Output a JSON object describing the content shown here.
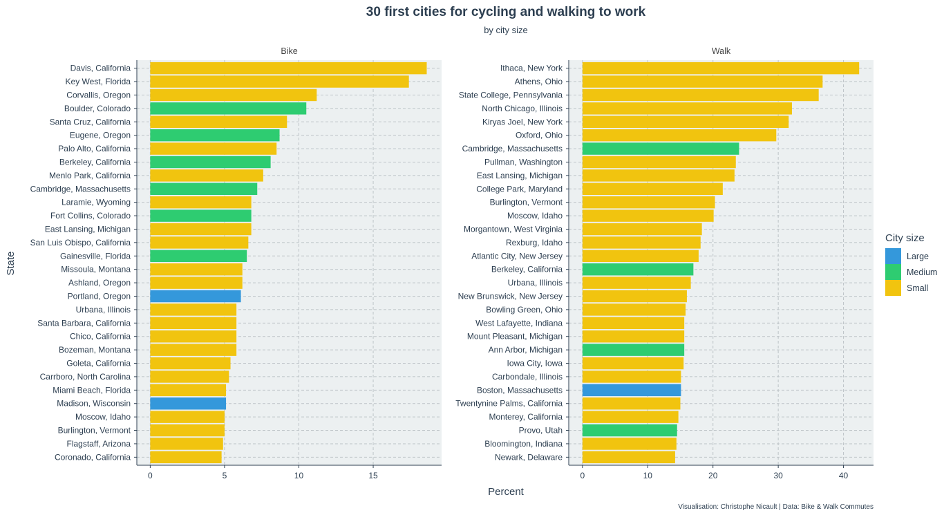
{
  "chart_data": {
    "type": "bar",
    "orientation": "horizontal",
    "title": "30 first cities for cycling and walking to work",
    "subtitle": "by city size",
    "xlabel": "Percent",
    "ylabel": "State",
    "caption": "Visualisation: Christophe Nicault | Data: Bike & Walk Commutes",
    "grid": true,
    "legend": {
      "title": "City size",
      "position": "right",
      "items": [
        {
          "label": "Large",
          "color": "#3498db"
        },
        {
          "label": "Medium",
          "color": "#2ecc71"
        },
        {
          "label": "Small",
          "color": "#f1c40f"
        }
      ]
    },
    "facets": [
      {
        "label": "Bike",
        "xlim": [
          -0.9,
          19.6
        ],
        "xticks": [
          0,
          5,
          10,
          15
        ],
        "bars": [
          {
            "city": "Davis, California",
            "value": 18.6,
            "size": "Small"
          },
          {
            "city": "Key West, Florida",
            "value": 17.4,
            "size": "Small"
          },
          {
            "city": "Corvallis, Oregon",
            "value": 11.2,
            "size": "Small"
          },
          {
            "city": "Boulder, Colorado",
            "value": 10.5,
            "size": "Medium"
          },
          {
            "city": "Santa Cruz, California",
            "value": 9.2,
            "size": "Small"
          },
          {
            "city": "Eugene, Oregon",
            "value": 8.7,
            "size": "Medium"
          },
          {
            "city": "Palo Alto, California",
            "value": 8.5,
            "size": "Small"
          },
          {
            "city": "Berkeley, California",
            "value": 8.1,
            "size": "Medium"
          },
          {
            "city": "Menlo Park, California",
            "value": 7.6,
            "size": "Small"
          },
          {
            "city": "Cambridge, Massachusetts",
            "value": 7.2,
            "size": "Medium"
          },
          {
            "city": "Laramie, Wyoming",
            "value": 6.8,
            "size": "Small"
          },
          {
            "city": "Fort Collins, Colorado",
            "value": 6.8,
            "size": "Medium"
          },
          {
            "city": "East Lansing, Michigan",
            "value": 6.8,
            "size": "Small"
          },
          {
            "city": "San Luis Obispo, California",
            "value": 6.6,
            "size": "Small"
          },
          {
            "city": "Gainesville, Florida",
            "value": 6.5,
            "size": "Medium"
          },
          {
            "city": "Missoula, Montana",
            "value": 6.2,
            "size": "Small"
          },
          {
            "city": "Ashland, Oregon",
            "value": 6.2,
            "size": "Small"
          },
          {
            "city": "Portland, Oregon",
            "value": 6.1,
            "size": "Large"
          },
          {
            "city": "Urbana, Illinois",
            "value": 5.8,
            "size": "Small"
          },
          {
            "city": "Santa Barbara, California",
            "value": 5.8,
            "size": "Small"
          },
          {
            "city": "Chico, California",
            "value": 5.8,
            "size": "Small"
          },
          {
            "city": "Bozeman, Montana",
            "value": 5.8,
            "size": "Small"
          },
          {
            "city": "Goleta, California",
            "value": 5.4,
            "size": "Small"
          },
          {
            "city": "Carrboro, North Carolina",
            "value": 5.3,
            "size": "Small"
          },
          {
            "city": "Miami Beach, Florida",
            "value": 5.1,
            "size": "Small"
          },
          {
            "city": "Madison, Wisconsin",
            "value": 5.1,
            "size": "Large"
          },
          {
            "city": "Moscow, Idaho",
            "value": 5.0,
            "size": "Small"
          },
          {
            "city": "Burlington, Vermont",
            "value": 5.0,
            "size": "Small"
          },
          {
            "city": "Flagstaff, Arizona",
            "value": 4.9,
            "size": "Small"
          },
          {
            "city": "Coronado, California",
            "value": 4.8,
            "size": "Small"
          }
        ]
      },
      {
        "label": "Walk",
        "xlim": [
          -2.1,
          44.6
        ],
        "xticks": [
          0,
          10,
          20,
          30,
          40
        ],
        "bars": [
          {
            "city": "Ithaca, New York",
            "value": 42.4,
            "size": "Small"
          },
          {
            "city": "Athens, Ohio",
            "value": 36.8,
            "size": "Small"
          },
          {
            "city": "State College, Pennsylvania",
            "value": 36.2,
            "size": "Small"
          },
          {
            "city": "North Chicago, Illinois",
            "value": 32.1,
            "size": "Small"
          },
          {
            "city": "Kiryas Joel, New York",
            "value": 31.6,
            "size": "Small"
          },
          {
            "city": "Oxford, Ohio",
            "value": 29.7,
            "size": "Small"
          },
          {
            "city": "Cambridge, Massachusetts",
            "value": 24.0,
            "size": "Medium"
          },
          {
            "city": "Pullman, Washington",
            "value": 23.5,
            "size": "Small"
          },
          {
            "city": "East Lansing, Michigan",
            "value": 23.3,
            "size": "Small"
          },
          {
            "city": "College Park, Maryland",
            "value": 21.5,
            "size": "Small"
          },
          {
            "city": "Burlington, Vermont",
            "value": 20.3,
            "size": "Small"
          },
          {
            "city": "Moscow, Idaho",
            "value": 20.1,
            "size": "Small"
          },
          {
            "city": "Morgantown, West Virginia",
            "value": 18.3,
            "size": "Small"
          },
          {
            "city": "Rexburg, Idaho",
            "value": 18.1,
            "size": "Small"
          },
          {
            "city": "Atlantic City, New Jersey",
            "value": 17.8,
            "size": "Small"
          },
          {
            "city": "Berkeley, California",
            "value": 17.0,
            "size": "Medium"
          },
          {
            "city": "Urbana, Illinois",
            "value": 16.6,
            "size": "Small"
          },
          {
            "city": "New Brunswick, New Jersey",
            "value": 16.0,
            "size": "Small"
          },
          {
            "city": "Bowling Green, Ohio",
            "value": 15.8,
            "size": "Small"
          },
          {
            "city": "West Lafayette, Indiana",
            "value": 15.6,
            "size": "Small"
          },
          {
            "city": "Mount Pleasant, Michigan",
            "value": 15.6,
            "size": "Small"
          },
          {
            "city": "Ann Arbor, Michigan",
            "value": 15.6,
            "size": "Medium"
          },
          {
            "city": "Iowa City, Iowa",
            "value": 15.5,
            "size": "Small"
          },
          {
            "city": "Carbondale, Illinois",
            "value": 15.1,
            "size": "Small"
          },
          {
            "city": "Boston, Massachusetts",
            "value": 15.1,
            "size": "Large"
          },
          {
            "city": "Twentynine Palms, California",
            "value": 15.0,
            "size": "Small"
          },
          {
            "city": "Monterey, California",
            "value": 14.7,
            "size": "Small"
          },
          {
            "city": "Provo, Utah",
            "value": 14.5,
            "size": "Medium"
          },
          {
            "city": "Bloomington, Indiana",
            "value": 14.4,
            "size": "Small"
          },
          {
            "city": "Newark, Delaware",
            "value": 14.2,
            "size": "Small"
          }
        ]
      }
    ]
  }
}
